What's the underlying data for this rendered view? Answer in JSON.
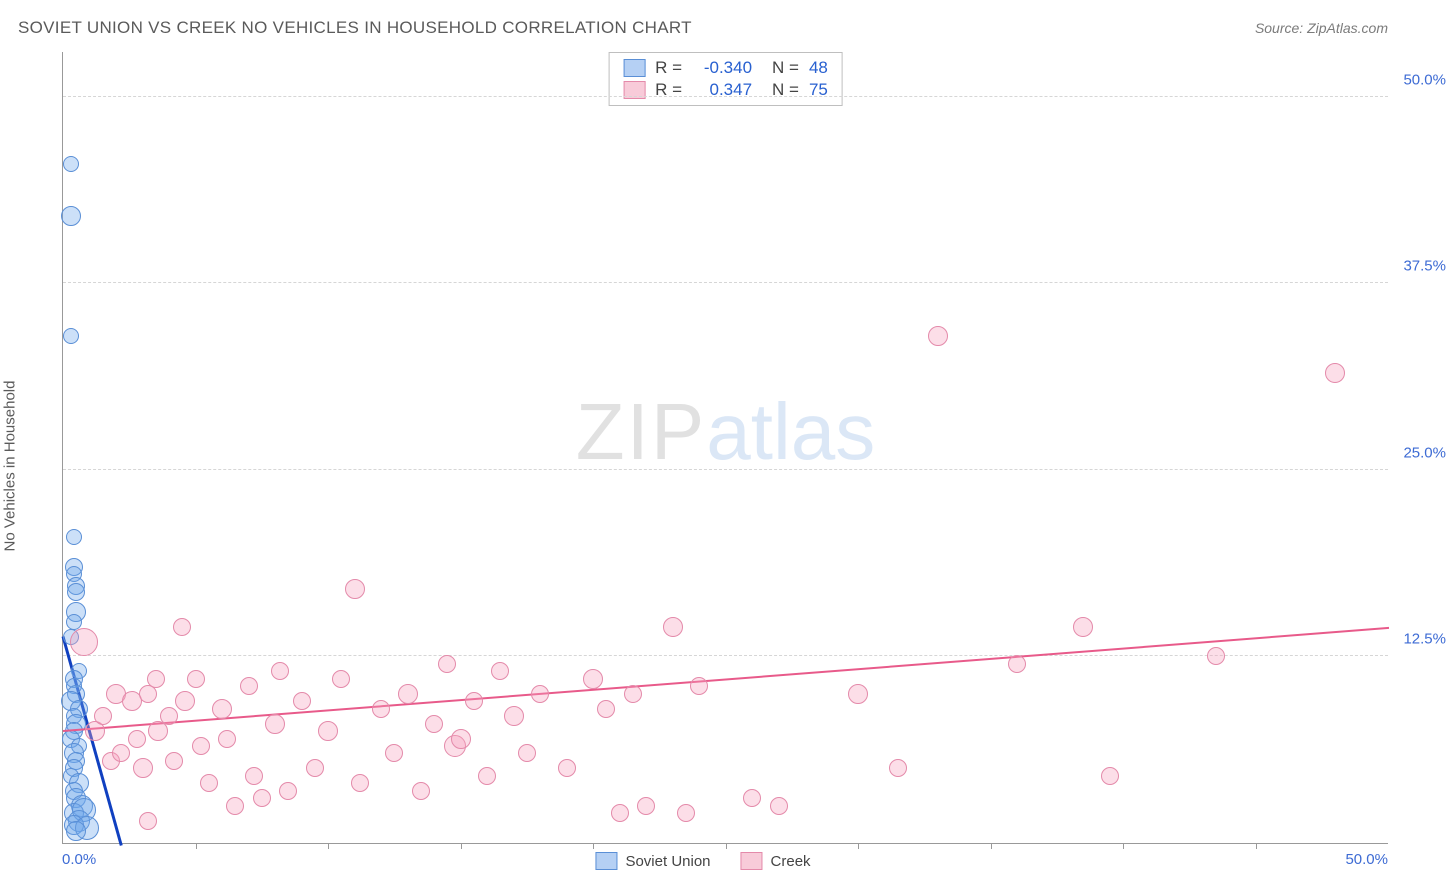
{
  "title": "SOVIET UNION VS CREEK NO VEHICLES IN HOUSEHOLD CORRELATION CHART",
  "source": "Source: ZipAtlas.com",
  "y_axis_label": "No Vehicles in Household",
  "watermark": {
    "zip": "ZIP",
    "atlas": "atlas"
  },
  "chart": {
    "type": "scatter",
    "xlim": [
      0,
      50
    ],
    "ylim": [
      0,
      53
    ],
    "x_min_label": "0.0%",
    "x_max_label": "50.0%",
    "y_ticks": [
      {
        "v": 12.5,
        "label": "12.5%"
      },
      {
        "v": 25.0,
        "label": "25.0%"
      },
      {
        "v": 37.5,
        "label": "37.5%"
      },
      {
        "v": 50.0,
        "label": "50.0%"
      }
    ],
    "x_ticks_minor": [
      5,
      10,
      15,
      20,
      25,
      30,
      35,
      40,
      45
    ],
    "background_color": "#ffffff",
    "grid_color": "#d6d6d6",
    "point_radius": 9,
    "series": [
      {
        "name": "Soviet Union",
        "color_fill": "rgba(110,165,235,0.35)",
        "color_stroke": "#5a8fd6",
        "css": "blue",
        "R": "-0.340",
        "N": "48",
        "trend": {
          "x1": 0.0,
          "y1": 14.0,
          "x2": 2.2,
          "y2": 0.0
        },
        "points": [
          {
            "x": 0.3,
            "y": 45.5,
            "r": 8
          },
          {
            "x": 0.3,
            "y": 42.0,
            "r": 10
          },
          {
            "x": 0.3,
            "y": 34.0,
            "r": 8
          },
          {
            "x": 0.4,
            "y": 20.5,
            "r": 8
          },
          {
            "x": 0.4,
            "y": 18.5,
            "r": 9
          },
          {
            "x": 0.4,
            "y": 18.0,
            "r": 8
          },
          {
            "x": 0.5,
            "y": 17.2,
            "r": 9
          },
          {
            "x": 0.5,
            "y": 16.8,
            "r": 9
          },
          {
            "x": 0.5,
            "y": 15.5,
            "r": 10
          },
          {
            "x": 0.4,
            "y": 14.8,
            "r": 8
          },
          {
            "x": 0.3,
            "y": 13.8,
            "r": 8
          },
          {
            "x": 0.6,
            "y": 11.5,
            "r": 8
          },
          {
            "x": 0.4,
            "y": 11.0,
            "r": 9
          },
          {
            "x": 0.4,
            "y": 10.5,
            "r": 8
          },
          {
            "x": 0.5,
            "y": 10.0,
            "r": 9
          },
          {
            "x": 0.3,
            "y": 9.5,
            "r": 10
          },
          {
            "x": 0.6,
            "y": 9.0,
            "r": 9
          },
          {
            "x": 0.4,
            "y": 8.5,
            "r": 8
          },
          {
            "x": 0.5,
            "y": 8.0,
            "r": 10
          },
          {
            "x": 0.4,
            "y": 7.5,
            "r": 9
          },
          {
            "x": 0.3,
            "y": 7.0,
            "r": 9
          },
          {
            "x": 0.6,
            "y": 6.5,
            "r": 8
          },
          {
            "x": 0.4,
            "y": 6.0,
            "r": 10
          },
          {
            "x": 0.5,
            "y": 5.5,
            "r": 9
          },
          {
            "x": 0.4,
            "y": 5.0,
            "r": 9
          },
          {
            "x": 0.3,
            "y": 4.5,
            "r": 8
          },
          {
            "x": 0.6,
            "y": 4.0,
            "r": 10
          },
          {
            "x": 0.4,
            "y": 3.5,
            "r": 9
          },
          {
            "x": 0.5,
            "y": 3.0,
            "r": 10
          },
          {
            "x": 0.7,
            "y": 2.5,
            "r": 11
          },
          {
            "x": 0.4,
            "y": 2.0,
            "r": 10
          },
          {
            "x": 0.8,
            "y": 2.2,
            "r": 12
          },
          {
            "x": 0.6,
            "y": 1.5,
            "r": 11
          },
          {
            "x": 0.4,
            "y": 1.2,
            "r": 10
          },
          {
            "x": 0.9,
            "y": 1.0,
            "r": 12
          },
          {
            "x": 0.5,
            "y": 0.8,
            "r": 10
          }
        ]
      },
      {
        "name": "Creek",
        "color_fill": "rgba(245,160,190,0.35)",
        "color_stroke": "#e48aaa",
        "css": "pink",
        "R": "0.347",
        "N": "75",
        "trend": {
          "x1": 0.0,
          "y1": 7.6,
          "x2": 50.0,
          "y2": 14.5
        },
        "points": [
          {
            "x": 0.8,
            "y": 13.5,
            "r": 14
          },
          {
            "x": 1.2,
            "y": 7.5,
            "r": 10
          },
          {
            "x": 1.5,
            "y": 8.5,
            "r": 9
          },
          {
            "x": 1.8,
            "y": 5.5,
            "r": 9
          },
          {
            "x": 2.0,
            "y": 10.0,
            "r": 10
          },
          {
            "x": 2.2,
            "y": 6.0,
            "r": 9
          },
          {
            "x": 2.6,
            "y": 9.5,
            "r": 10
          },
          {
            "x": 2.8,
            "y": 7.0,
            "r": 9
          },
          {
            "x": 3.0,
            "y": 5.0,
            "r": 10
          },
          {
            "x": 3.2,
            "y": 10.0,
            "r": 9
          },
          {
            "x": 3.2,
            "y": 1.5,
            "r": 9
          },
          {
            "x": 3.5,
            "y": 11.0,
            "r": 9
          },
          {
            "x": 3.6,
            "y": 7.5,
            "r": 10
          },
          {
            "x": 4.0,
            "y": 8.5,
            "r": 9
          },
          {
            "x": 4.2,
            "y": 5.5,
            "r": 9
          },
          {
            "x": 4.5,
            "y": 14.5,
            "r": 9
          },
          {
            "x": 4.6,
            "y": 9.5,
            "r": 10
          },
          {
            "x": 5.0,
            "y": 11.0,
            "r": 9
          },
          {
            "x": 5.2,
            "y": 6.5,
            "r": 9
          },
          {
            "x": 5.5,
            "y": 4.0,
            "r": 9
          },
          {
            "x": 6.0,
            "y": 9.0,
            "r": 10
          },
          {
            "x": 6.2,
            "y": 7.0,
            "r": 9
          },
          {
            "x": 6.5,
            "y": 2.5,
            "r": 9
          },
          {
            "x": 7.0,
            "y": 10.5,
            "r": 9
          },
          {
            "x": 7.2,
            "y": 4.5,
            "r": 9
          },
          {
            "x": 7.5,
            "y": 3.0,
            "r": 9
          },
          {
            "x": 8.0,
            "y": 8.0,
            "r": 10
          },
          {
            "x": 8.2,
            "y": 11.5,
            "r": 9
          },
          {
            "x": 8.5,
            "y": 3.5,
            "r": 9
          },
          {
            "x": 9.0,
            "y": 9.5,
            "r": 9
          },
          {
            "x": 9.5,
            "y": 5.0,
            "r": 9
          },
          {
            "x": 10.0,
            "y": 7.5,
            "r": 10
          },
          {
            "x": 10.5,
            "y": 11.0,
            "r": 9
          },
          {
            "x": 11.0,
            "y": 17.0,
            "r": 10
          },
          {
            "x": 11.2,
            "y": 4.0,
            "r": 9
          },
          {
            "x": 12.0,
            "y": 9.0,
            "r": 9
          },
          {
            "x": 12.5,
            "y": 6.0,
            "r": 9
          },
          {
            "x": 13.0,
            "y": 10.0,
            "r": 10
          },
          {
            "x": 13.5,
            "y": 3.5,
            "r": 9
          },
          {
            "x": 14.0,
            "y": 8.0,
            "r": 9
          },
          {
            "x": 14.5,
            "y": 12.0,
            "r": 9
          },
          {
            "x": 14.8,
            "y": 6.5,
            "r": 11
          },
          {
            "x": 15.0,
            "y": 7.0,
            "r": 10
          },
          {
            "x": 15.5,
            "y": 9.5,
            "r": 9
          },
          {
            "x": 16.0,
            "y": 4.5,
            "r": 9
          },
          {
            "x": 16.5,
            "y": 11.5,
            "r": 9
          },
          {
            "x": 17.0,
            "y": 8.5,
            "r": 10
          },
          {
            "x": 17.5,
            "y": 6.0,
            "r": 9
          },
          {
            "x": 18.0,
            "y": 10.0,
            "r": 9
          },
          {
            "x": 19.0,
            "y": 5.0,
            "r": 9
          },
          {
            "x": 20.0,
            "y": 11.0,
            "r": 10
          },
          {
            "x": 20.5,
            "y": 9.0,
            "r": 9
          },
          {
            "x": 21.0,
            "y": 2.0,
            "r": 9
          },
          {
            "x": 21.5,
            "y": 10.0,
            "r": 9
          },
          {
            "x": 22.0,
            "y": 2.5,
            "r": 9
          },
          {
            "x": 23.0,
            "y": 14.5,
            "r": 10
          },
          {
            "x": 23.5,
            "y": 2.0,
            "r": 9
          },
          {
            "x": 24.0,
            "y": 10.5,
            "r": 9
          },
          {
            "x": 26.0,
            "y": 3.0,
            "r": 9
          },
          {
            "x": 27.0,
            "y": 2.5,
            "r": 9
          },
          {
            "x": 30.0,
            "y": 10.0,
            "r": 10
          },
          {
            "x": 31.5,
            "y": 5.0,
            "r": 9
          },
          {
            "x": 33.0,
            "y": 34.0,
            "r": 10
          },
          {
            "x": 36.0,
            "y": 12.0,
            "r": 9
          },
          {
            "x": 38.5,
            "y": 14.5,
            "r": 10
          },
          {
            "x": 39.5,
            "y": 4.5,
            "r": 9
          },
          {
            "x": 43.5,
            "y": 12.5,
            "r": 9
          },
          {
            "x": 48.0,
            "y": 31.5,
            "r": 10
          }
        ]
      }
    ]
  },
  "bottom_legend": [
    {
      "label": "Soviet Union",
      "css": "blue"
    },
    {
      "label": "Creek",
      "css": "pink"
    }
  ]
}
